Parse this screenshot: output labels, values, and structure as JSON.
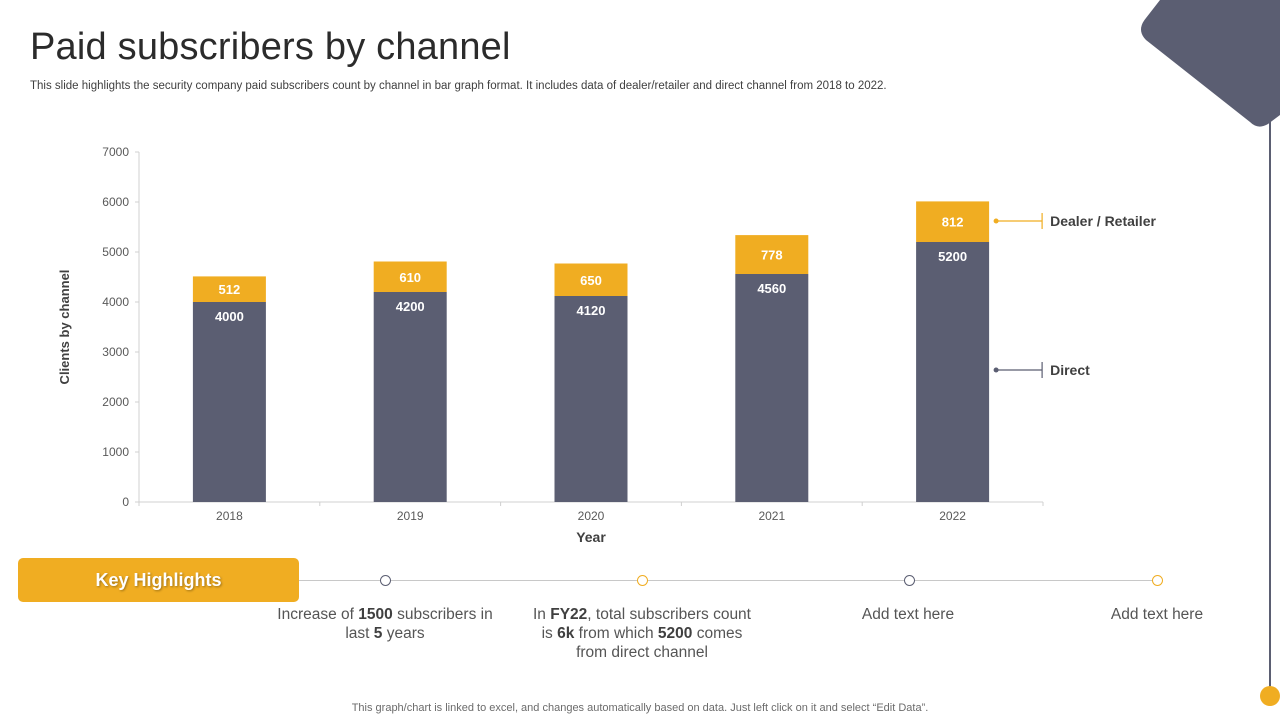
{
  "page": {
    "title": "Paid subscribers by channel",
    "subtitle": "This slide highlights the security company paid subscribers count by channel in bar graph format. It includes data of dealer/retailer and direct channel from 2018 to 2022.",
    "footer": "This graph/chart is linked to excel,  and changes automatically based on data. Just left click on it and select “Edit Data”."
  },
  "colors": {
    "direct": "#5b5e72",
    "dealer": "#f0ad22",
    "axis": "#d0d0d0",
    "text": "#404040"
  },
  "chart_data": {
    "type": "bar",
    "stacked": true,
    "categories": [
      "2018",
      "2019",
      "2020",
      "2021",
      "2022"
    ],
    "series": [
      {
        "name": "Direct",
        "values": [
          4000,
          4200,
          4120,
          4560,
          5200
        ]
      },
      {
        "name": "Dealer / Retailer",
        "values": [
          512,
          610,
          650,
          778,
          812
        ]
      }
    ],
    "xlabel": "Year",
    "ylabel": "Clients by channel",
    "ylim": [
      0,
      7000
    ],
    "yticks": [
      0,
      1000,
      2000,
      3000,
      4000,
      5000,
      6000,
      7000
    ],
    "legend": "right"
  },
  "highlights": {
    "title": "Key Highlights",
    "items": [
      {
        "pre": "Increase  of ",
        "b1": "1500",
        "mid1": " subscribers in last ",
        "b2": "5",
        "mid2": " years",
        "b3": "",
        "post": "",
        "dot": "gray"
      },
      {
        "pre": "In ",
        "b1": "FY22",
        "mid1": ", total subscribers count is ",
        "b2": "6k",
        "mid2": " from which ",
        "b3": "5200",
        "post": " comes from direct channel",
        "dot": "gold"
      },
      {
        "pre": "Add text here",
        "b1": "",
        "mid1": "",
        "b2": "",
        "mid2": "",
        "b3": "",
        "post": "",
        "dot": "gray"
      },
      {
        "pre": "Add text here",
        "b1": "",
        "mid1": "",
        "b2": "",
        "mid2": "",
        "b3": "",
        "post": "",
        "dot": "gold"
      }
    ]
  }
}
